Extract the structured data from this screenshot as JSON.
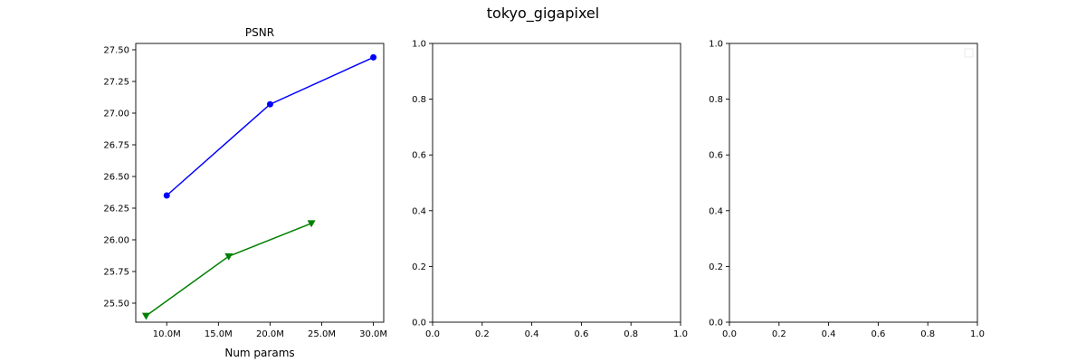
{
  "figure": {
    "suptitle": "tokyo_gigapixel"
  },
  "chart_data": [
    {
      "type": "line",
      "title": "PSNR",
      "xlabel": "Num params",
      "ylabel": "",
      "xlim": [
        7000000,
        31000000
      ],
      "ylim": [
        25.35,
        27.55
      ],
      "xticks": [
        10000000,
        15000000,
        20000000,
        25000000,
        30000000
      ],
      "xtick_labels": [
        "10.0M",
        "15.0M",
        "20.0M",
        "25.0M",
        "30.0M"
      ],
      "yticks": [
        25.5,
        25.75,
        26.0,
        26.25,
        26.5,
        26.75,
        27.0,
        27.25,
        27.5
      ],
      "ytick_labels": [
        "25.50",
        "25.75",
        "26.00",
        "26.25",
        "26.50",
        "26.75",
        "27.00",
        "27.25",
        "27.50"
      ],
      "grid": false,
      "series": [
        {
          "color": "#0000ff",
          "marker": "circle",
          "x": [
            10000000,
            20000000,
            30000000
          ],
          "y": [
            26.35,
            27.07,
            27.44
          ]
        },
        {
          "color": "#008000",
          "marker": "triangle-down",
          "x": [
            8000000,
            16000000,
            24000000
          ],
          "y": [
            25.4,
            25.87,
            26.13
          ]
        }
      ]
    },
    {
      "type": "line",
      "title": "",
      "xlabel": "",
      "ylabel": "",
      "xlim": [
        0,
        1
      ],
      "ylim": [
        0,
        1
      ],
      "xticks": [
        0,
        0.2,
        0.4,
        0.6,
        0.8,
        1.0
      ],
      "xtick_labels": [
        "0.0",
        "0.2",
        "0.4",
        "0.6",
        "0.8",
        "1.0"
      ],
      "yticks": [
        0,
        0.2,
        0.4,
        0.6,
        0.8,
        1.0
      ],
      "ytick_labels": [
        "0.0",
        "0.2",
        "0.4",
        "0.6",
        "0.8",
        "1.0"
      ],
      "grid": false,
      "series": []
    },
    {
      "type": "line",
      "title": "",
      "xlabel": "",
      "ylabel": "",
      "xlim": [
        0,
        1
      ],
      "ylim": [
        0,
        1
      ],
      "xticks": [
        0,
        0.2,
        0.4,
        0.6,
        0.8,
        1.0
      ],
      "xtick_labels": [
        "0.0",
        "0.2",
        "0.4",
        "0.6",
        "0.8",
        "1.0"
      ],
      "yticks": [
        0,
        0.2,
        0.4,
        0.6,
        0.8,
        1.0
      ],
      "ytick_labels": [
        "0.0",
        "0.2",
        "0.4",
        "0.6",
        "0.8",
        "1.0"
      ],
      "grid": false,
      "legend": "top-right",
      "series": []
    }
  ]
}
